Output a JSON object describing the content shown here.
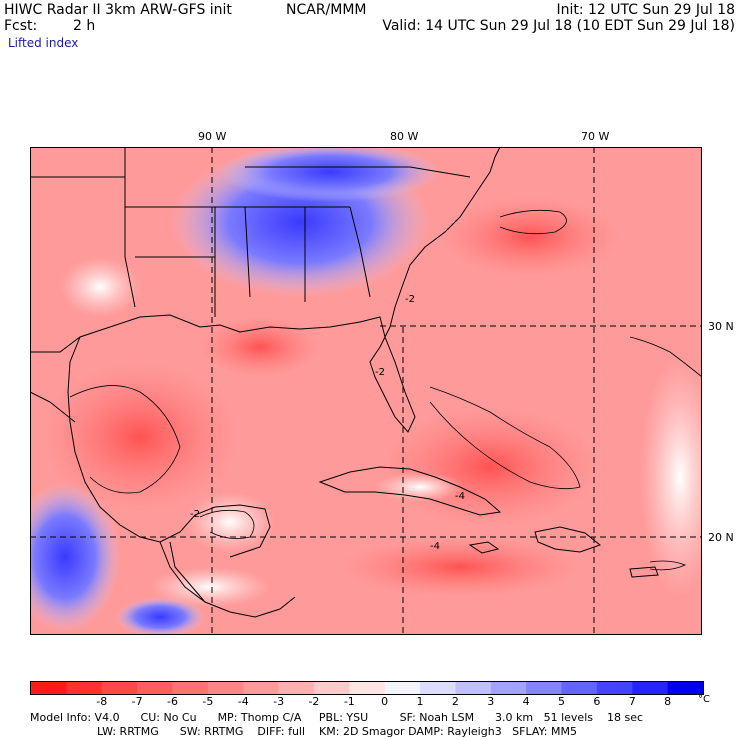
{
  "header": {
    "model": "HIWC Radar II 3km ARW-GFS init",
    "org": "NCAR/MMM",
    "init": "Init: 12 UTC Sun 29 Jul 18",
    "fcst_label": "Fcst:",
    "fcst_value": "2 h",
    "valid": "Valid: 14 UTC Sun 29 Jul 18 (10 EDT Sun 29 Jul 18)",
    "field": "Lifted index"
  },
  "map": {
    "lon_labels": [
      "90 W",
      "80 W",
      "70 W"
    ],
    "lat_labels": [
      "30 N",
      "20 N"
    ],
    "contour_labels": [
      "-2",
      "-2",
      "-4",
      "-4",
      "-2"
    ]
  },
  "colorbar": {
    "ticks": [
      "-8",
      "-7",
      "-6",
      "-5",
      "-4",
      "-3",
      "-2",
      "-1",
      "0",
      "1",
      "2",
      "3",
      "4",
      "5",
      "6",
      "7",
      "8"
    ],
    "unit": "°C",
    "colors": [
      "#ff1a1a",
      "#ff3030",
      "#ff4848",
      "#ff5e5e",
      "#ff7272",
      "#ff8686",
      "#ff9a9a",
      "#ffb0b0",
      "#ffcaca",
      "#ffe4e4",
      "#f4f4ff",
      "#dcdcff",
      "#c0c0ff",
      "#a2a2ff",
      "#8484ff",
      "#6464ff",
      "#4444ff",
      "#2424ff",
      "#0000ee"
    ]
  },
  "footer": {
    "line1": "Model Info: V4.0      CU: No Cu      MP: Thomp C/A     PBL: YSU         SF: Noah LSM      3.0 km   51 levels    18 sec",
    "line2": "LW: RRTMG      SW: RRTMG    DIFF: full    KM: 2D Smagor DAMP: Rayleigh3   SFLAY: MM5"
  }
}
